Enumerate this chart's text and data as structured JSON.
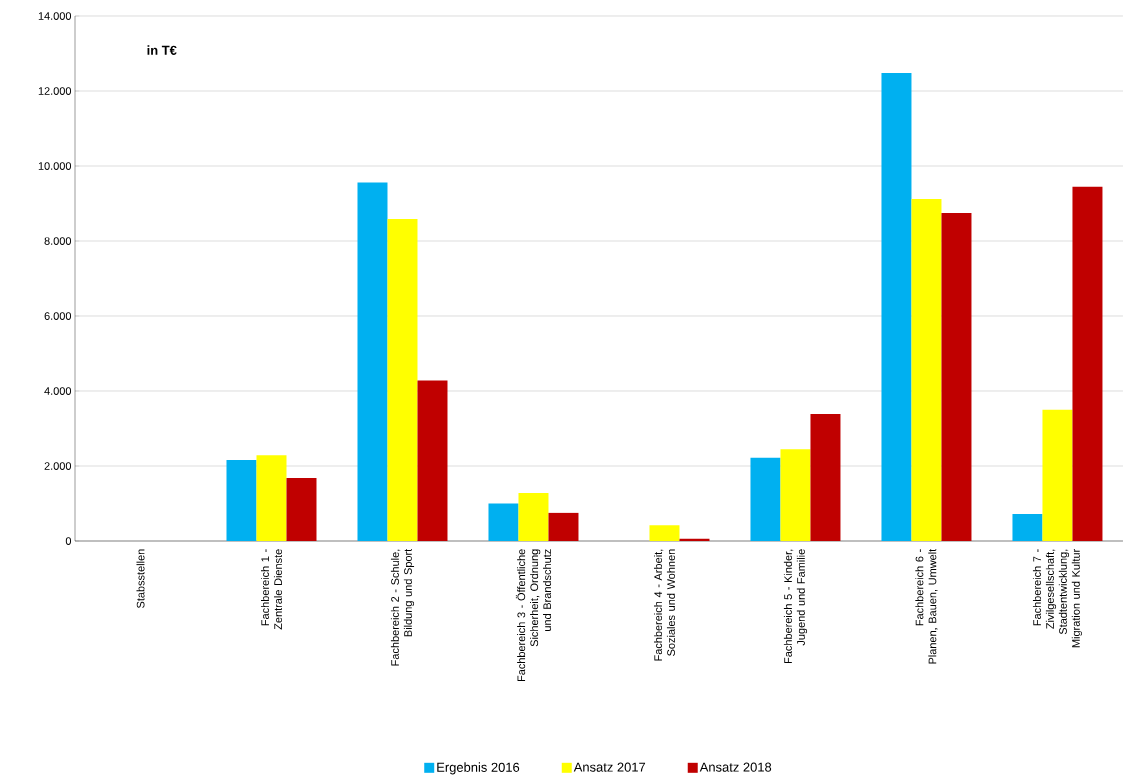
{
  "chart_data": {
    "type": "bar",
    "annotations": [
      "in T€"
    ],
    "categories": [
      "Stabsstellen",
      "Fachbereich 1 - Zentrale Dienste",
      "Fachbereich 2 - Schule, Bildung und Sport",
      "Fachbereich 3 - Öffentliche Sicherheit, Ordnung und Brandschutz",
      "Fachbereich 4 - Arbeit, Soziales und Wohnen",
      "Fachbereich 5 - Kinder, Jugend und Familie",
      "Fachbereich 6 - Planen, Bauen, Umwelt",
      "Fachbereich 7 - Zivilgesellschaft, Stadtentwicklung, Migration und Kultur"
    ],
    "series": [
      {
        "name": "Ergebnis 2016",
        "color": "#00b0f0",
        "values": [
          0,
          2160,
          9560,
          1000,
          0,
          2220,
          12480,
          720
        ]
      },
      {
        "name": "Ansatz 2017",
        "color": "#ffff00",
        "values": [
          0,
          2290,
          8590,
          1280,
          420,
          2450,
          9120,
          3500
        ]
      },
      {
        "name": "Ansatz 2018",
        "color": "#c00000",
        "values": [
          0,
          1680,
          4280,
          750,
          60,
          3390,
          8750,
          9450
        ]
      }
    ],
    "ylim": [
      0,
      14000
    ],
    "yticks": [
      {
        "value": 0,
        "label": "0"
      },
      {
        "value": 2000,
        "label": "2.000"
      },
      {
        "value": 4000,
        "label": "4.000"
      },
      {
        "value": 6000,
        "label": "6.000"
      },
      {
        "value": 8000,
        "label": "8.000"
      },
      {
        "value": 10000,
        "label": "10.000"
      },
      {
        "value": 12000,
        "label": "12.000"
      },
      {
        "value": 14000,
        "label": "14.000"
      }
    ],
    "grid": "y",
    "legend": "bottom"
  }
}
